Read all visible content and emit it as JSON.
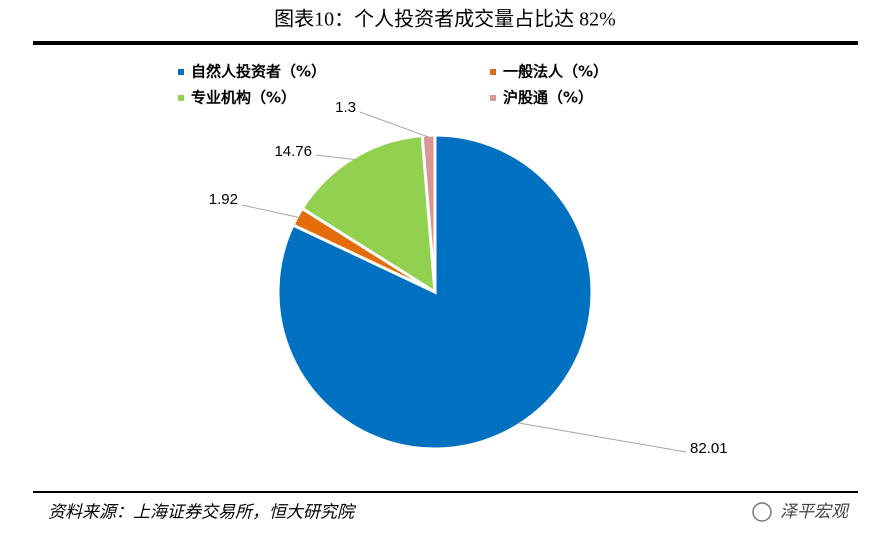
{
  "chart_data": {
    "type": "pie",
    "title": "图表10：个人投资者成交量占比达 82%",
    "categories": [
      "自然人投资者（%）",
      "一般法人（%）",
      "专业机构（%）",
      "沪股通（%）"
    ],
    "values": [
      82.01,
      1.92,
      14.76,
      1.3
    ],
    "colors": [
      "#0070c0",
      "#e46c0a",
      "#92d050",
      "#d99694"
    ],
    "source": "资料来源：上海证券交易所，恒大研究院",
    "watermark": "泽平宏观"
  }
}
